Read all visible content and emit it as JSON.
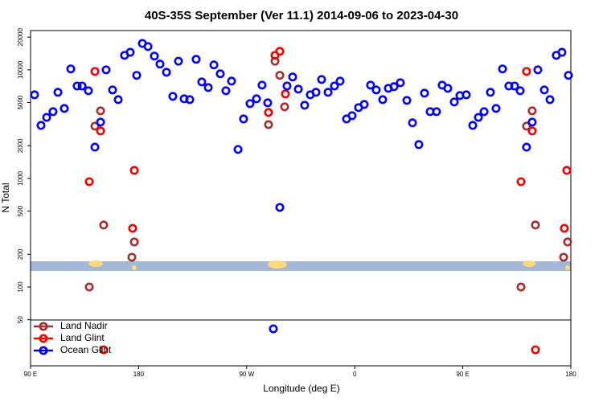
{
  "chart_data": {
    "type": "scatter",
    "title": "40S-35S September (Ver 11.1)   2014-09-06 to 2023-04-30",
    "x_label": "Longitude (deg E)",
    "y_label": "N Total",
    "xlim": [
      90,
      540
    ],
    "xticks": [
      {
        "value": 90,
        "label": "90 E"
      },
      180,
      {
        "value": 270,
        "label": "90 W"
      },
      {
        "value": 360,
        "label": "0"
      },
      {
        "value": 450,
        "label": "90 E"
      },
      {
        "value": 540,
        "label": "180"
      }
    ],
    "ylim": [
      18.8,
      23000
    ],
    "log_y": true,
    "yticks": [
      50,
      100,
      200,
      500,
      1000,
      2000,
      5000,
      10000,
      20000
    ],
    "legend": "lower left",
    "series": [
      {
        "name": "Land Nadir",
        "color": "#a03030",
        "x": [
          138.9,
          143.6,
          148.3,
          150.9,
          174.4,
          176.4,
          288.2,
          293.6,
          297.6,
          301.6,
          498.5,
          503.1,
          507.8,
          510.5,
          534,
          537.3
        ],
        "values": [
          100,
          3030,
          4190,
          372,
          188,
          260,
          3130,
          12000,
          8900,
          4560,
          100,
          3030,
          4190,
          372,
          188,
          260
        ]
      },
      {
        "name": "Land Glint",
        "color": "#ee0000",
        "x": [
          138.9,
          143.6,
          148.3,
          176.4,
          175,
          150.9,
          288.2,
          293.6,
          297.6,
          302.3,
          498.5,
          503.1,
          507.8,
          536.6,
          534.6,
          510.5
        ],
        "values": [
          933,
          9670,
          2735,
          1186,
          347,
          26.4,
          4050,
          13600,
          14800,
          6000,
          933,
          9670,
          2735,
          1186,
          347,
          26.4
        ]
      },
      {
        "name": "Ocean Glint",
        "color": "#0000ee",
        "x": [
          93.3,
          98.7,
          103.4,
          108.7,
          112.8,
          118.1,
          123.5,
          128.8,
          132.9,
          138.2,
          143.6,
          148.3,
          152.9,
          158.3,
          163,
          168.3,
          173,
          178.4,
          183.1,
          187.8,
          193.1,
          197.8,
          203.2,
          208.5,
          213.2,
          217.9,
          222.6,
          227.9,
          232.6,
          238,
          242.7,
          248,
          252.7,
          257.4,
          262.8,
          267.4,
          272.8,
          278.2,
          282.8,
          287.5,
          292.2,
          297.6,
          303.6,
          308.3,
          313,
          318.3,
          323,
          327.7,
          332.4,
          337.8,
          343.1,
          347.8,
          353.2,
          357.8,
          363.2,
          367.9,
          373.2,
          377.9,
          383.3,
          388,
          392.7,
          398,
          403.4,
          408.1,
          413.4,
          418.1,
          422.8,
          428.1,
          432.8,
          437.5,
          442.9,
          447.6,
          452.9,
          458.3,
          463,
          467.7,
          473,
          477.7,
          483.1,
          488.4,
          493.1,
          497.8,
          503.1,
          507.8,
          512.5,
          517.9,
          522.6,
          527.9,
          532.6,
          538
        ],
        "values": [
          5890,
          3080,
          3650,
          4120,
          6210,
          4410,
          10200,
          7100,
          7100,
          6420,
          1940,
          3300,
          10000,
          6530,
          5320,
          13600,
          14500,
          8900,
          17500,
          16400,
          13400,
          11300,
          9500,
          5700,
          12000,
          5410,
          5320,
          12500,
          7740,
          6870,
          11100,
          9200,
          6420,
          7870,
          1850,
          3530,
          4890,
          5410,
          7230,
          4970,
          41.2,
          541,
          7100,
          8600,
          6640,
          4720,
          5890,
          6210,
          8150,
          6210,
          7100,
          7870,
          3530,
          3780,
          4490,
          4800,
          7230,
          6530,
          5320,
          6760,
          7000,
          7610,
          5230,
          3250,
          2050,
          6100,
          4120,
          4120,
          7230,
          6760,
          5060,
          5790,
          5890,
          3080,
          3650,
          4120,
          6210,
          4410,
          10200,
          7100,
          7100,
          6420,
          1940,
          3300,
          10000,
          6530,
          5320,
          13600,
          14500,
          8900
        ]
      }
    ]
  }
}
